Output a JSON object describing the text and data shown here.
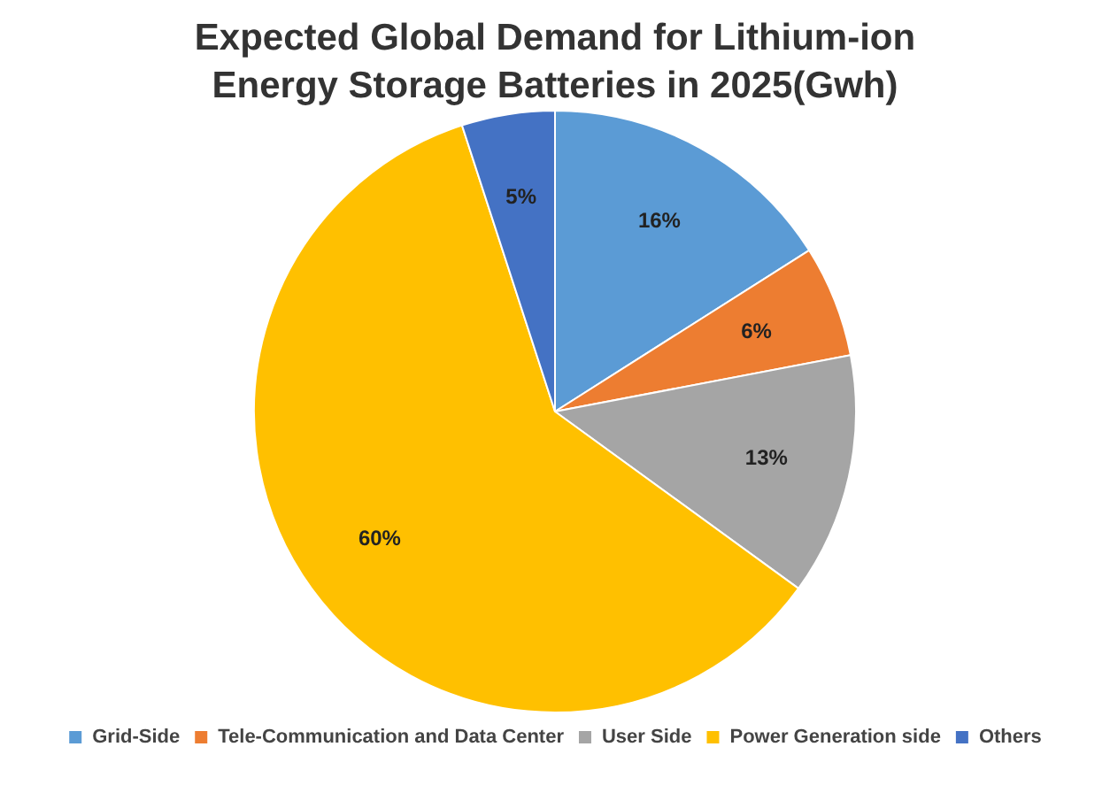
{
  "chart_data": {
    "type": "pie",
    "title": "Expected Global Demand for Lithium-ion Energy Storage Batteries in 2025(Gwh)",
    "categories": [
      "Grid-Side",
      "Tele-Communication and Data Center",
      "User Side",
      "Power Generation side",
      "Others"
    ],
    "values": [
      16,
      6,
      13,
      60,
      5
    ],
    "colors": [
      "#5b9bd5",
      "#ed7d31",
      "#a5a5a5",
      "#ffc000",
      "#4472c4"
    ],
    "value_labels": [
      "16%",
      "6%",
      "13%",
      "60%",
      "5%"
    ],
    "legend": "bottom"
  }
}
